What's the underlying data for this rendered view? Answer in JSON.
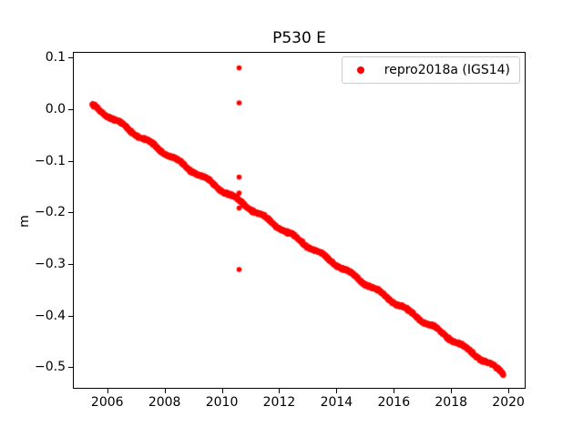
{
  "figure": {
    "background": "#ffffff",
    "frame_color": "#000000",
    "text_color": "#000000"
  },
  "chart_data": {
    "type": "scatter",
    "title": "P530 E",
    "xlabel": "",
    "ylabel": "m",
    "xlim": [
      2004.8,
      2020.6
    ],
    "ylim": [
      -0.542,
      0.111
    ],
    "xticks": [
      2006,
      2008,
      2010,
      2012,
      2014,
      2016,
      2018,
      2020
    ],
    "xtick_labels": [
      "2006",
      "2008",
      "2010",
      "2012",
      "2014",
      "2016",
      "2018",
      "2020"
    ],
    "yticks": [
      0.1,
      0.0,
      -0.1,
      -0.2,
      -0.3,
      -0.4,
      -0.5
    ],
    "ytick_labels": [
      "0.1",
      "0.0",
      "−0.1",
      "−0.2",
      "−0.3",
      "−0.4",
      "−0.5"
    ],
    "grid": false,
    "legend": {
      "position": "upper right",
      "entries": [
        {
          "label": "repro2018a (IGS14)",
          "marker": "dot",
          "color": "#ff0000"
        }
      ]
    },
    "series": [
      {
        "name": "repro2018a (IGS14)",
        "color": "#ff0000",
        "marker": "circle",
        "marker_radius_px": 2.8,
        "sampling": "daily",
        "trend": {
          "x_start": 2005.44,
          "y_start": 0.009,
          "x_end": 2019.8,
          "y_end": -0.51,
          "slope_m_per_yr": -0.0361,
          "seasonal_amplitude_m": 0.003,
          "noise_sigma_m": 0.0013,
          "point_step_years": 0.00548
        },
        "outliers": [
          {
            "x": 2010.57,
            "y": 0.082
          },
          {
            "x": 2010.57,
            "y": 0.014
          },
          {
            "x": 2010.57,
            "y": -0.13
          },
          {
            "x": 2010.57,
            "y": -0.161
          },
          {
            "x": 2010.57,
            "y": -0.19
          },
          {
            "x": 2010.57,
            "y": -0.309
          }
        ]
      }
    ]
  }
}
